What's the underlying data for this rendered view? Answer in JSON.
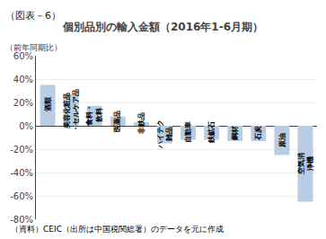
{
  "chart_data": {
    "type": "bar",
    "title": "個別品別の輸入金額（2016年1-6月期）",
    "ylabel": "（前年同期比）",
    "annotations": [
      "（図表－6）",
      "（資料）CEIC（出所は中国税関総署）のデータを元に作成"
    ],
    "categories": [
      "酒類",
      "美容化粧品\n・セルケア品",
      "食料・\n飲料",
      "医薬品",
      "非鉄品",
      "ハイテク\n雑品",
      "自動車",
      "鉄鉱石",
      "鋼材",
      "石炭",
      "原油",
      "空気消\n浄機"
    ],
    "values": [
      35,
      27,
      17,
      8,
      3,
      -15,
      -12,
      -12,
      -13,
      -13,
      -25,
      -65
    ],
    "color": "#b8cce4",
    "ylim": [
      -80,
      60
    ],
    "yticks": [
      {
        "value": -80,
        "label": "-80%"
      },
      {
        "value": -60,
        "label": "-60%"
      },
      {
        "value": -40,
        "label": "-40%"
      },
      {
        "value": -20,
        "label": "-20%"
      },
      {
        "value": 0,
        "label": "0%"
      },
      {
        "value": 20,
        "label": "20%"
      },
      {
        "value": 40,
        "label": "40%"
      },
      {
        "value": 60,
        "label": "60%"
      }
    ],
    "grid": true,
    "tick_labels": "y"
  }
}
